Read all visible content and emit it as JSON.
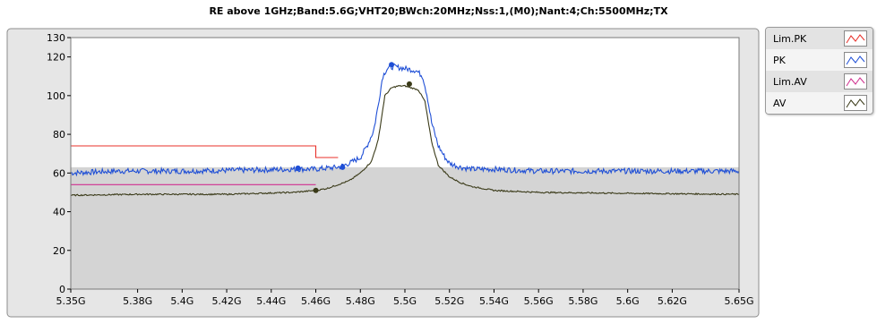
{
  "chart_data": {
    "type": "line",
    "title": "RE above 1GHz;Band:5.6G;VHT20;BWch:20MHz;Nss:1,(M0);Nant:4;Ch:5500MHz;TX",
    "xlabel": "",
    "ylabel": "",
    "xlim": [
      5.35,
      5.65
    ],
    "ylim": [
      0,
      130
    ],
    "grid": false,
    "legend_position": "right",
    "x_ticks": [
      {
        "value": 5.35,
        "label": "5.35G"
      },
      {
        "value": 5.38,
        "label": "5.38G"
      },
      {
        "value": 5.4,
        "label": "5.4G"
      },
      {
        "value": 5.42,
        "label": "5.42G"
      },
      {
        "value": 5.44,
        "label": "5.44G"
      },
      {
        "value": 5.46,
        "label": "5.46G"
      },
      {
        "value": 5.48,
        "label": "5.48G"
      },
      {
        "value": 5.5,
        "label": "5.5G"
      },
      {
        "value": 5.52,
        "label": "5.52G"
      },
      {
        "value": 5.54,
        "label": "5.54G"
      },
      {
        "value": 5.56,
        "label": "5.56G"
      },
      {
        "value": 5.58,
        "label": "5.58G"
      },
      {
        "value": 5.6,
        "label": "5.6G"
      },
      {
        "value": 5.62,
        "label": "5.62G"
      },
      {
        "value": 5.65,
        "label": "5.65G"
      }
    ],
    "y_ticks": [
      {
        "value": 0,
        "label": "0"
      },
      {
        "value": 20,
        "label": "20"
      },
      {
        "value": 40,
        "label": "40"
      },
      {
        "value": 60,
        "label": "60"
      },
      {
        "value": 80,
        "label": "80"
      },
      {
        "value": 100,
        "label": "100"
      },
      {
        "value": 120,
        "label": "120"
      },
      {
        "value": 130,
        "label": "130"
      }
    ],
    "restricted_band_below_dB": 63,
    "series": [
      {
        "name": "Lim.PK",
        "color": "#e8302a",
        "x": [
          5.35,
          5.46,
          5.46,
          5.47
        ],
        "y": [
          74,
          74,
          68,
          68
        ]
      },
      {
        "name": "PK",
        "color": "#1f4fd6",
        "x": [
          5.35,
          5.37,
          5.4,
          5.43,
          5.45,
          5.46,
          5.465,
          5.47,
          5.475,
          5.48,
          5.483,
          5.486,
          5.488,
          5.49,
          5.492,
          5.495,
          5.5,
          5.505,
          5.508,
          5.51,
          5.512,
          5.515,
          5.518,
          5.52,
          5.525,
          5.53,
          5.54,
          5.56,
          5.6,
          5.65
        ],
        "y": [
          60,
          61,
          61,
          61.5,
          62,
          62,
          62.5,
          63,
          65,
          68,
          74,
          82,
          95,
          110,
          114,
          115,
          114,
          113,
          110,
          100,
          86,
          74,
          68,
          65,
          63,
          62,
          62,
          61,
          61,
          61
        ]
      },
      {
        "name": "Lim.AV",
        "color": "#d0308f",
        "x": [
          5.35,
          5.46
        ],
        "y": [
          54,
          54
        ]
      },
      {
        "name": "AV",
        "color": "#3a3a18",
        "x": [
          5.35,
          5.38,
          5.42,
          5.45,
          5.46,
          5.465,
          5.47,
          5.475,
          5.48,
          5.485,
          5.488,
          5.491,
          5.494,
          5.497,
          5.5,
          5.503,
          5.506,
          5.509,
          5.512,
          5.515,
          5.52,
          5.525,
          5.53,
          5.54,
          5.56,
          5.6,
          5.65
        ],
        "y": [
          48.5,
          49,
          49,
          50,
          51,
          52,
          54,
          56,
          60,
          66,
          77,
          100,
          104,
          105,
          105,
          104,
          103,
          97,
          76,
          64,
          58,
          55,
          53,
          51,
          50,
          49.5,
          49
        ]
      }
    ],
    "markers": [
      {
        "series": "PK",
        "x": 5.452,
        "y": 62.5
      },
      {
        "series": "PK",
        "x": 5.472,
        "y": 63
      },
      {
        "series": "PK",
        "x": 5.494,
        "y": 116
      },
      {
        "series": "AV",
        "x": 5.46,
        "y": 51
      },
      {
        "series": "AV",
        "x": 5.502,
        "y": 106
      }
    ]
  },
  "colors": {
    "plot_upper_bg": "#ffffff",
    "plot_lower_bg": "#d4d4d4",
    "frame_bg": "#e6e6e6",
    "frame_border": "#8c8c8c"
  },
  "legend": {
    "items": [
      {
        "label": "Lim.PK",
        "color": "#e8302a"
      },
      {
        "label": "PK",
        "color": "#1f4fd6"
      },
      {
        "label": "Lim.AV",
        "color": "#d0308f"
      },
      {
        "label": "AV",
        "color": "#3a3a18"
      }
    ]
  }
}
